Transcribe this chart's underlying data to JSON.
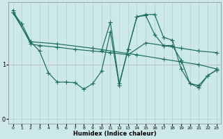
{
  "xlabel": "Humidex (Indice chaleur)",
  "bg_color": "#cce8e8",
  "line_color": "#1a6b60",
  "grid_color": "#b0d0d0",
  "pink_line_color": "#e89898",
  "xlim": [
    -0.5,
    23.5
  ],
  "ylim": [
    -0.08,
    2.15
  ],
  "lines": [
    {
      "x": [
        0,
        2,
        3,
        5,
        7,
        9,
        11,
        13,
        15,
        17,
        19,
        21,
        23
      ],
      "y": [
        2.0,
        1.38,
        1.35,
        1.32,
        1.28,
        1.25,
        1.22,
        1.18,
        1.4,
        1.35,
        1.3,
        1.25,
        1.22
      ]
    },
    {
      "x": [
        0,
        2,
        5,
        9,
        14,
        17,
        19,
        21,
        23
      ],
      "y": [
        1.95,
        1.42,
        1.38,
        1.3,
        1.18,
        1.1,
        1.05,
        1.0,
        0.92
      ]
    },
    {
      "x": [
        0,
        1,
        2,
        3,
        4,
        5,
        6,
        7,
        8,
        9,
        10,
        11,
        12,
        13,
        14,
        15,
        16,
        17,
        18,
        19,
        20,
        21,
        22,
        23
      ],
      "y": [
        1.95,
        1.75,
        1.42,
        1.25,
        0.85,
        0.68,
        0.68,
        0.67,
        0.55,
        0.65,
        0.88,
        1.6,
        0.62,
        1.28,
        1.88,
        1.9,
        1.55,
        1.35,
        1.35,
        1.08,
        0.65,
        0.58,
        0.8,
        0.9
      ]
    },
    {
      "x": [
        10,
        11,
        12,
        13,
        14,
        15,
        16,
        17,
        18,
        19,
        20,
        21,
        22,
        23
      ],
      "y": [
        1.25,
        1.78,
        0.65,
        1.28,
        1.88,
        1.92,
        1.92,
        1.5,
        1.45,
        0.92,
        0.65,
        0.62,
        0.8,
        0.9
      ]
    }
  ],
  "marker": "+",
  "markersize": 4,
  "linewidth": 0.85
}
